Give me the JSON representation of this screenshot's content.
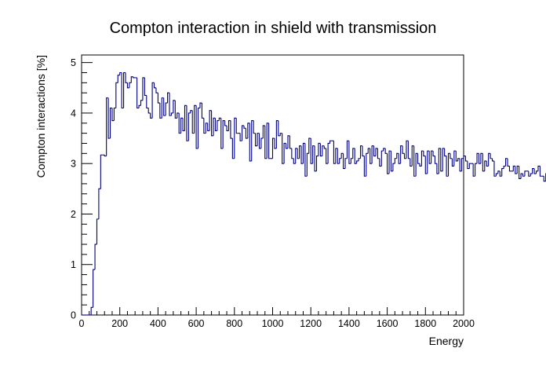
{
  "chart_data": {
    "type": "line",
    "style": "step-histogram",
    "title": "Compton interaction in shield with transmission",
    "xlabel": "Energy",
    "ylabel": "Compton interactions [%]",
    "xlim": [
      0,
      2000
    ],
    "ylim": [
      0,
      5.15
    ],
    "xticks": [
      0,
      200,
      400,
      600,
      800,
      1000,
      1200,
      1400,
      1600,
      1800,
      2000
    ],
    "yticks": [
      0,
      1,
      2,
      3,
      4,
      5
    ],
    "grid": false,
    "bin_width": 10,
    "x_start": 0,
    "series": [
      {
        "name": "Compton interactions",
        "color": "#000080",
        "values": [
          0,
          0,
          0,
          0,
          0,
          0.15,
          0.9,
          1.4,
          1.9,
          2.5,
          3.17,
          3.17,
          3.15,
          4.3,
          3.5,
          4.1,
          3.85,
          4.1,
          4.6,
          4.75,
          4.8,
          4.1,
          4.8,
          4.6,
          4.5,
          4.6,
          4.72,
          4.7,
          4.7,
          4.1,
          4.15,
          4.25,
          4.7,
          4.35,
          4.1,
          4.0,
          3.9,
          4.6,
          4.5,
          4.4,
          4.2,
          3.9,
          4.3,
          3.95,
          4.2,
          4.4,
          3.95,
          4.0,
          4.25,
          3.9,
          4.0,
          3.6,
          3.9,
          3.65,
          4.15,
          3.45,
          4.0,
          4.05,
          3.6,
          4.15,
          3.3,
          4.1,
          4.2,
          3.9,
          3.6,
          3.8,
          3.65,
          4.05,
          3.55,
          3.9,
          3.65,
          3.85,
          3.9,
          3.3,
          3.85,
          3.75,
          3.65,
          3.85,
          3.5,
          3.1,
          3.9,
          3.6,
          3.6,
          3.45,
          3.75,
          3.7,
          3.5,
          3.8,
          3.05,
          3.85,
          3.6,
          3.35,
          3.6,
          3.3,
          3.5,
          3.75,
          3.1,
          3.8,
          3.1,
          3.1,
          3.5,
          3.3,
          3.85,
          3.55,
          3.6,
          3.0,
          3.4,
          3.3,
          3.55,
          3.3,
          3.1,
          3.0,
          3.3,
          3.1,
          3.35,
          3.0,
          3.4,
          2.75,
          3.2,
          3.5,
          3.0,
          3.35,
          2.85,
          3.15,
          3.4,
          3.15,
          3.35,
          3.3,
          3.0,
          3.4,
          3.45,
          3.45,
          3.0,
          3.3,
          3.0,
          3.1,
          3.2,
          2.9,
          3.1,
          3.45,
          3.0,
          3.1,
          3.3,
          3.0,
          3.05,
          3.1,
          3.35,
          3.15,
          2.75,
          3.2,
          3.3,
          3.0,
          3.35,
          3.15,
          3.3,
          3.1,
          2.95,
          3.25,
          3.3,
          3.2,
          2.8,
          3.25,
          2.85,
          3.0,
          3.1,
          3.2,
          3.0,
          3.35,
          3.2,
          3.1,
          3.45,
          3.1,
          2.95,
          3.35,
          2.75,
          3.2,
          3.0,
          2.95,
          3.25,
          3.15,
          2.8,
          3.25,
          3.0,
          3.25,
          3.15,
          3.0,
          2.8,
          3.3,
          2.85,
          3.3,
          3.15,
          2.75,
          3.2,
          3.1,
          2.95,
          3.25,
          3.05,
          3.1,
          2.85,
          3.1,
          3.15,
          3.05,
          2.9,
          3.0,
          3.0,
          2.75,
          3.0,
          3.2,
          3.0,
          3.2,
          2.85,
          3.05,
          2.95,
          3.2,
          3.1,
          3.05,
          2.75,
          2.8,
          2.85,
          2.75,
          2.9,
          2.95,
          3.1,
          2.95,
          2.85,
          2.85,
          2.95,
          2.8,
          2.95,
          2.7,
          2.8,
          2.75,
          2.85,
          2.85,
          2.75,
          2.8,
          2.9,
          2.8,
          2.85,
          2.95,
          2.75,
          2.75,
          2.65,
          2.8,
          3.35,
          2.75,
          2.85,
          2.6,
          2.55,
          2.8,
          2.85,
          2.6,
          2.75,
          2.9,
          2.7,
          2.55,
          2.3,
          2.65,
          2.75,
          2.75,
          2.75,
          2.45,
          2.5,
          2.8,
          2.7,
          2.6,
          2.75,
          2.55,
          2.65,
          2.6
        ]
      }
    ],
    "legend": "none"
  }
}
